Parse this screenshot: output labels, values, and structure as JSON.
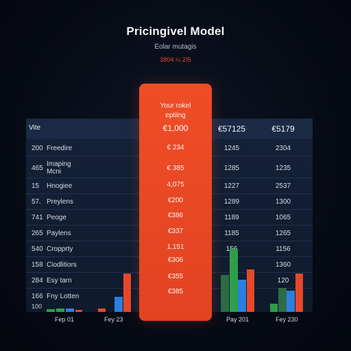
{
  "header": {
    "title": "Pricingivel Model",
    "subtitle": "Eolar mutagis",
    "date_range": "3804 ¼ 2I5"
  },
  "table": {
    "corner_label": "Vite",
    "col2_header": "€57125",
    "col3_header": "€5179",
    "rows": [
      {
        "num": "200",
        "name": "Freedire",
        "col2": "1245",
        "col3": "2304"
      },
      {
        "num": "465",
        "name": "Imaping Mcni",
        "col2": "1285",
        "col3": "1235"
      },
      {
        "num": "15",
        "name": "Hnogiee",
        "col2": "1227",
        "col3": "2537"
      },
      {
        "num": "57.",
        "name": "Preylens",
        "col2": "1289",
        "col3": "1300"
      },
      {
        "num": "741",
        "name": "Peoge",
        "col2": "1189",
        "col3": "1065"
      },
      {
        "num": "265",
        "name": "Paylens",
        "col2": "1185",
        "col3": "1265"
      },
      {
        "num": "540",
        "name": "Cropprty",
        "col2": "156",
        "col3": "1156"
      },
      {
        "num": "158",
        "name": "Ciodlitiors",
        "col2": "",
        "col3": "1360"
      },
      {
        "num": "284",
        "name": "Esy tarn",
        "col2": "",
        "col3": "120"
      },
      {
        "num": "166",
        "name": "Fny Lotten",
        "col2": "",
        "col3": ""
      }
    ],
    "axis_bottom": "100"
  },
  "featured": {
    "title_line1": "Your rokel",
    "title_line2": "eptiing",
    "price": "€1,000",
    "values": [
      "€ 234",
      "€ 385",
      "4,075",
      "€200",
      "€386",
      "€337",
      "1,151",
      "€306",
      "€355",
      "€385"
    ]
  },
  "x_labels": [
    "Fep 01",
    "Fey 23",
    "Pay 201",
    "Fey 230"
  ],
  "colors": {
    "accent": "#e8472a",
    "green": "#2e9e4a",
    "dark_green": "#2e6b45",
    "blue": "#2b7fe0"
  }
}
